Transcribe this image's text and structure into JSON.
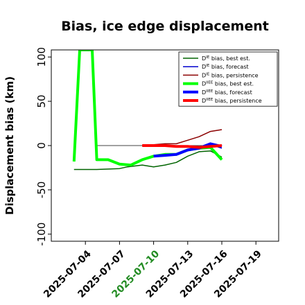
{
  "chart_data": {
    "type": "line",
    "title": "Bias, ice edge displacement",
    "xlabel": "",
    "ylabel": "Displacement bias (km)",
    "x_range": [
      "2025-07-01",
      "2025-07-21"
    ],
    "ylim": [
      -108,
      108
    ],
    "yticks": [
      -100,
      -50,
      0,
      50,
      100
    ],
    "xticks": [
      "2025-07-04",
      "2025-07-07",
      "2025-07-10",
      "2025-07-13",
      "2025-07-16",
      "2025-07-19"
    ],
    "highlight_tick": "2025-07-10",
    "highlight_color": "#228B22",
    "grid": false,
    "legend_position": "upper right",
    "series": [
      {
        "name": "D^IE bias, best est.",
        "color": "#006400",
        "width": 1.5,
        "points": [
          [
            "2025-07-03",
            -27
          ],
          [
            "2025-07-05",
            -27
          ],
          [
            "2025-07-07",
            -26
          ],
          [
            "2025-07-07.7",
            -24
          ],
          [
            "2025-07-09",
            -22
          ],
          [
            "2025-07-10",
            -24
          ],
          [
            "2025-07-11",
            -22
          ],
          [
            "2025-07-12",
            -19
          ],
          [
            "2025-07-13",
            -12
          ],
          [
            "2025-07-14",
            -7
          ],
          [
            "2025-07-15",
            -6
          ],
          [
            "2025-07-16",
            -13
          ]
        ]
      },
      {
        "name": "D^IE bias, forecast",
        "color": "#0000cd",
        "width": 1.5,
        "points": [
          [
            "2025-07-10",
            -12
          ],
          [
            "2025-07-11",
            -11
          ],
          [
            "2025-07-12",
            -10
          ],
          [
            "2025-07-13",
            -6
          ],
          [
            "2025-07-14",
            -3
          ],
          [
            "2025-07-15",
            1
          ],
          [
            "2025-07-16",
            -3
          ]
        ]
      },
      {
        "name": "D^IE bias, persistence",
        "color": "#8b0000",
        "width": 1.5,
        "points": [
          [
            "2025-07-09",
            0
          ],
          [
            "2025-07-10",
            1
          ],
          [
            "2025-07-11",
            2
          ],
          [
            "2025-07-12",
            2
          ],
          [
            "2025-07-13",
            6
          ],
          [
            "2025-07-14",
            10
          ],
          [
            "2025-07-15",
            16
          ],
          [
            "2025-07-16",
            18
          ]
        ]
      },
      {
        "name": "D^IIEE bias, best est.",
        "color": "#00ff00",
        "width": 4,
        "points": [
          [
            "2025-07-03",
            -18
          ],
          [
            "2025-07-03.5",
            108
          ],
          [
            "2025-07-04.6",
            108
          ],
          [
            "2025-07-05",
            -16
          ],
          [
            "2025-07-06",
            -16
          ],
          [
            "2025-07-07",
            -21
          ],
          [
            "2025-07-08",
            -22
          ],
          [
            "2025-07-09",
            -16
          ],
          [
            "2025-07-10",
            -12
          ],
          [
            "2025-07-11",
            -10
          ],
          [
            "2025-07-12",
            -10
          ],
          [
            "2025-07-13",
            -5
          ],
          [
            "2025-07-14",
            -3
          ],
          [
            "2025-07-15",
            -2
          ],
          [
            "2025-07-16",
            -16
          ]
        ]
      },
      {
        "name": "D^IIEE bias, forecast",
        "color": "#0000ff",
        "width": 4,
        "points": [
          [
            "2025-07-10",
            -12
          ],
          [
            "2025-07-11",
            -11
          ],
          [
            "2025-07-12",
            -10
          ],
          [
            "2025-07-13",
            -5
          ],
          [
            "2025-07-14",
            -3
          ],
          [
            "2025-07-15",
            2
          ],
          [
            "2025-07-16",
            -1
          ]
        ]
      },
      {
        "name": "D^IIEE bias, persistence",
        "color": "#ff0000",
        "width": 4,
        "points": [
          [
            "2025-07-09",
            0
          ],
          [
            "2025-07-10",
            0
          ],
          [
            "2025-07-11",
            0
          ],
          [
            "2025-07-12",
            -1
          ],
          [
            "2025-07-13",
            -1
          ],
          [
            "2025-07-14",
            -2
          ],
          [
            "2025-07-15",
            -1
          ],
          [
            "2025-07-16",
            0
          ]
        ]
      }
    ],
    "reference_lines": [
      {
        "color": "#000000",
        "width": 0.8,
        "points": [
          [
            "2025-07-05",
            0
          ],
          [
            "2025-07-16",
            0
          ]
        ]
      },
      {
        "color": "#aaaaaa",
        "width": 0.8,
        "points": [
          [
            "2025-07-03",
            -27
          ],
          [
            "2025-07-05",
            -27
          ]
        ]
      }
    ],
    "legend": [
      {
        "label": "D",
        "sup": "IE",
        "rest": " bias, best est.",
        "color": "#006400",
        "width": 1.5
      },
      {
        "label": "D",
        "sup": "IE",
        "rest": " bias, forecast",
        "color": "#0000cd",
        "width": 1.5
      },
      {
        "label": "D",
        "sup": "IE",
        "rest": " bias, persistence",
        "color": "#8b0000",
        "width": 1.5
      },
      {
        "label": "D",
        "sup": "IIEE",
        "rest": " bias, best est.",
        "color": "#00ff00",
        "width": 4
      },
      {
        "label": "D",
        "sup": "IIEE",
        "rest": " bias, forecast",
        "color": "#0000ff",
        "width": 4
      },
      {
        "label": "D",
        "sup": "IIEE",
        "rest": " bias, persistence",
        "color": "#ff0000",
        "width": 4
      }
    ]
  }
}
